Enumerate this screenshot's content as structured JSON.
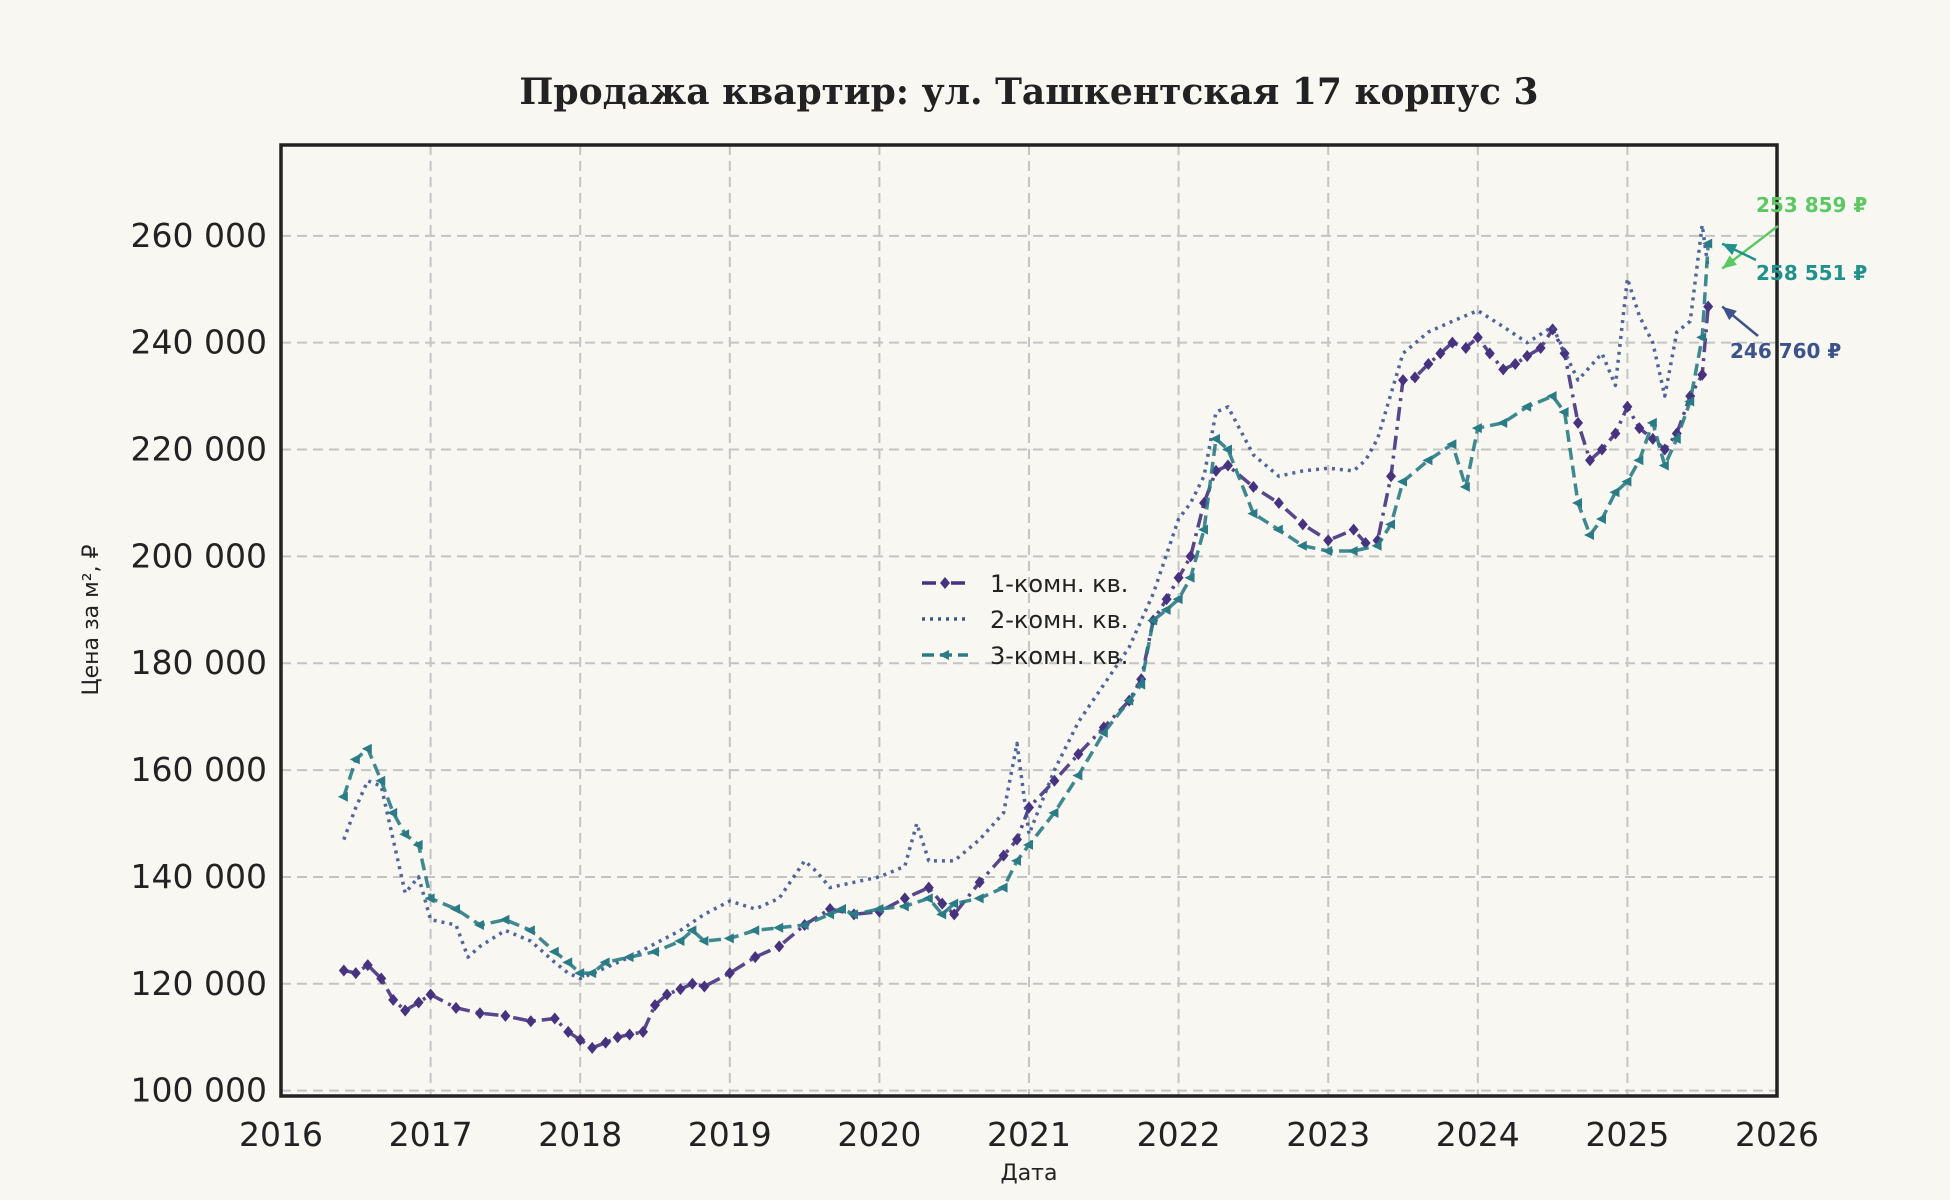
{
  "chart_data": {
    "type": "line",
    "title": "Продажа квартир: ул. Ташкентская 17 корпус 3",
    "xlabel": "Дата",
    "ylabel": "Цена за м², ₽",
    "xlim": [
      2016,
      2026
    ],
    "ylim": [
      99000,
      277000
    ],
    "x_ticks": [
      2016,
      2017,
      2018,
      2019,
      2020,
      2021,
      2022,
      2023,
      2024,
      2025,
      2026
    ],
    "x_tick_labels": [
      "2016",
      "2017",
      "2018",
      "2019",
      "2020",
      "2021",
      "2022",
      "2023",
      "2024",
      "2025",
      "2026"
    ],
    "y_ticks": [
      100000,
      120000,
      140000,
      160000,
      180000,
      200000,
      220000,
      240000,
      260000
    ],
    "y_tick_labels": [
      "100 000",
      "120 000",
      "140 000",
      "160 000",
      "180 000",
      "200 000",
      "220 000",
      "240 000",
      "260 000"
    ],
    "grid": true,
    "legend_position": "center",
    "series": [
      {
        "name": "1-комн. кв.",
        "color": "#46327e",
        "style": "dashdot",
        "marker": "diamond",
        "x": [
          2016.42,
          2016.5,
          2016.58,
          2016.67,
          2016.75,
          2016.83,
          2016.92,
          2017.0,
          2017.17,
          2017.33,
          2017.5,
          2017.67,
          2017.83,
          2017.92,
          2018.0,
          2018.08,
          2018.17,
          2018.25,
          2018.33,
          2018.42,
          2018.5,
          2018.58,
          2018.67,
          2018.75,
          2018.83,
          2019.0,
          2019.17,
          2019.33,
          2019.5,
          2019.67,
          2019.83,
          2020.0,
          2020.17,
          2020.33,
          2020.42,
          2020.5,
          2020.67,
          2020.83,
          2020.92,
          2021.0,
          2021.17,
          2021.33,
          2021.5,
          2021.67,
          2021.75,
          2021.83,
          2021.92,
          2022.0,
          2022.08,
          2022.17,
          2022.25,
          2022.33,
          2022.5,
          2022.67,
          2022.83,
          2023.0,
          2023.17,
          2023.25,
          2023.33,
          2023.42,
          2023.5,
          2023.58,
          2023.67,
          2023.75,
          2023.83,
          2023.92,
          2024.0,
          2024.08,
          2024.17,
          2024.25,
          2024.33,
          2024.42,
          2024.5,
          2024.58,
          2024.67,
          2024.75,
          2024.83,
          2024.92,
          2025.0,
          2025.08,
          2025.17,
          2025.25,
          2025.33,
          2025.42,
          2025.5,
          2025.54
        ],
        "y": [
          122500,
          122000,
          123500,
          121000,
          117000,
          115000,
          116500,
          118000,
          115500,
          114500,
          114000,
          113000,
          113500,
          111000,
          109500,
          108000,
          109000,
          110000,
          110500,
          111000,
          116000,
          118000,
          119000,
          120000,
          119500,
          122000,
          125000,
          127000,
          131000,
          134000,
          133000,
          133500,
          136000,
          138000,
          135000,
          133000,
          139000,
          144000,
          147000,
          153000,
          158000,
          163000,
          168000,
          173000,
          177000,
          188000,
          192000,
          196000,
          200000,
          210000,
          216000,
          217000,
          213000,
          210000,
          206000,
          203000,
          205000,
          202500,
          203000,
          215000,
          233000,
          233500,
          236000,
          238000,
          240000,
          239000,
          241000,
          238000,
          235000,
          236000,
          237500,
          239000,
          242500,
          238000,
          225000,
          218000,
          220000,
          223000,
          228000,
          224000,
          222000,
          220000,
          223000,
          230000,
          234000,
          246760
        ]
      },
      {
        "name": "2-комн. кв.",
        "color": "#3b5591",
        "style": "dotted",
        "marker": "none",
        "x": [
          2016.42,
          2016.5,
          2016.58,
          2016.67,
          2016.75,
          2016.83,
          2016.92,
          2017.0,
          2017.17,
          2017.25,
          2017.33,
          2017.5,
          2017.67,
          2017.83,
          2017.92,
          2018.0,
          2018.17,
          2018.33,
          2018.5,
          2018.67,
          2018.83,
          2019.0,
          2019.17,
          2019.33,
          2019.5,
          2019.58,
          2019.67,
          2019.83,
          2020.0,
          2020.17,
          2020.25,
          2020.33,
          2020.5,
          2020.67,
          2020.83,
          2020.92,
          2021.0,
          2021.17,
          2021.33,
          2021.5,
          2021.67,
          2021.83,
          2022.0,
          2022.08,
          2022.17,
          2022.25,
          2022.33,
          2022.5,
          2022.67,
          2022.83,
          2023.0,
          2023.17,
          2023.25,
          2023.33,
          2023.5,
          2023.67,
          2023.83,
          2024.0,
          2024.17,
          2024.33,
          2024.5,
          2024.67,
          2024.83,
          2024.92,
          2025.0,
          2025.08,
          2025.17,
          2025.25,
          2025.33,
          2025.42,
          2025.5,
          2025.54
        ],
        "y": [
          147000,
          153000,
          158000,
          157000,
          147000,
          137000,
          140000,
          132000,
          131000,
          125000,
          127000,
          130000,
          128000,
          124000,
          122000,
          121000,
          123000,
          125000,
          127500,
          130000,
          133000,
          135500,
          134000,
          136000,
          143000,
          141000,
          138000,
          139000,
          140000,
          142000,
          150000,
          143000,
          143000,
          147000,
          152000,
          165000,
          148000,
          160000,
          169000,
          176000,
          183000,
          193000,
          207000,
          210000,
          215000,
          227000,
          228000,
          219000,
          215000,
          216000,
          216500,
          216000,
          218000,
          222000,
          238000,
          242000,
          244000,
          246000,
          243000,
          240000,
          243000,
          233000,
          238000,
          232000,
          252000,
          245000,
          240000,
          230000,
          242000,
          244000,
          262000,
          253859
        ]
      },
      {
        "name": "3-комн. кв.",
        "color": "#2a7b85",
        "style": "dashed",
        "marker": "triangle",
        "x": [
          2016.42,
          2016.5,
          2016.58,
          2016.67,
          2016.75,
          2016.83,
          2016.92,
          2017.0,
          2017.17,
          2017.33,
          2017.5,
          2017.67,
          2017.83,
          2017.92,
          2018.0,
          2018.08,
          2018.17,
          2018.33,
          2018.5,
          2018.67,
          2018.75,
          2018.83,
          2019.0,
          2019.17,
          2019.33,
          2019.5,
          2019.67,
          2019.75,
          2019.83,
          2020.0,
          2020.17,
          2020.33,
          2020.42,
          2020.5,
          2020.67,
          2020.83,
          2020.92,
          2021.0,
          2021.17,
          2021.33,
          2021.5,
          2021.67,
          2021.75,
          2021.83,
          2021.92,
          2022.0,
          2022.08,
          2022.17,
          2022.25,
          2022.33,
          2022.5,
          2022.67,
          2022.83,
          2023.0,
          2023.17,
          2023.33,
          2023.42,
          2023.5,
          2023.67,
          2023.83,
          2023.92,
          2024.0,
          2024.17,
          2024.33,
          2024.5,
          2024.58,
          2024.67,
          2024.75,
          2024.83,
          2024.92,
          2025.0,
          2025.08,
          2025.17,
          2025.25,
          2025.33,
          2025.42,
          2025.5,
          2025.54
        ],
        "y": [
          155000,
          162000,
          164000,
          158000,
          152000,
          148000,
          146000,
          136000,
          134000,
          131000,
          132000,
          130000,
          126000,
          124000,
          122000,
          122000,
          124000,
          125000,
          126000,
          128000,
          130000,
          128000,
          128500,
          130000,
          130500,
          131000,
          133000,
          134000,
          133000,
          134000,
          134500,
          136000,
          133000,
          135000,
          136000,
          138000,
          143000,
          146000,
          152000,
          159000,
          167000,
          173000,
          176000,
          188000,
          190000,
          192000,
          196000,
          205000,
          222000,
          220000,
          208000,
          205000,
          202000,
          201000,
          201000,
          202000,
          206000,
          214000,
          218000,
          221000,
          213000,
          224000,
          225000,
          228000,
          230000,
          227000,
          210000,
          204000,
          207000,
          212000,
          214000,
          218000,
          225000,
          217000,
          222000,
          229000,
          241000,
          258551
        ]
      }
    ],
    "annotations": [
      {
        "text": "253 859 ₽",
        "color": "#5cc863",
        "series": "2-комн. кв."
      },
      {
        "text": "258 551 ₽",
        "color": "#21918c",
        "series": "3-комн. кв."
      },
      {
        "text": "246 760 ₽",
        "color": "#3b528b",
        "series": "1-комн. кв."
      }
    ]
  }
}
